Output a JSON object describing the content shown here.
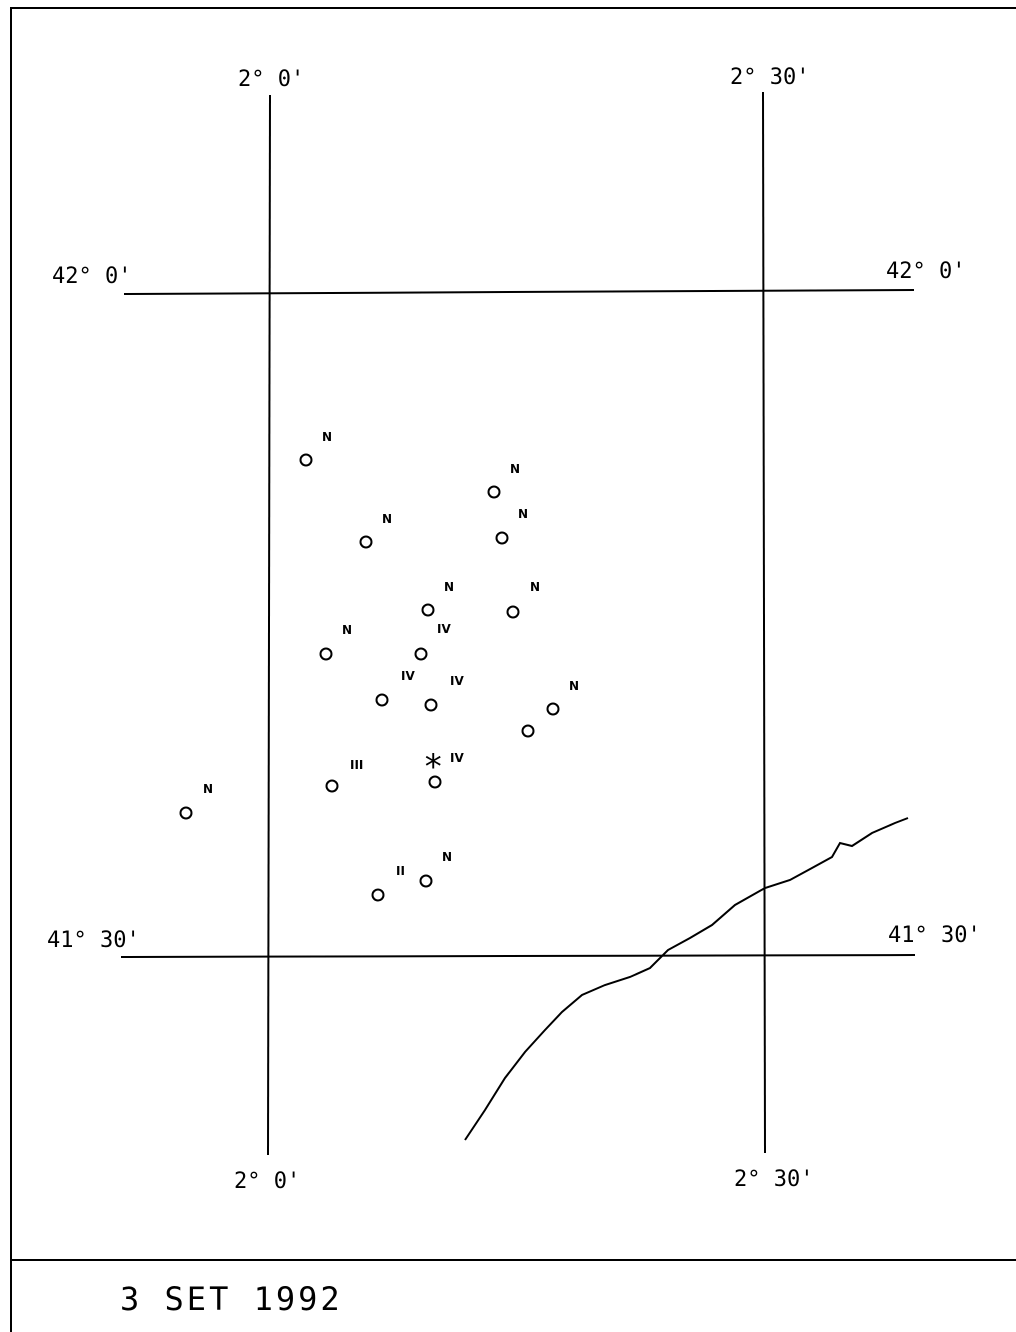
{
  "map": {
    "labels": {
      "lon_2_0": "2° 0'",
      "lon_2_30": "2° 30'",
      "lat_42_0": "42° 0'",
      "lat_41_30": "41° 30'"
    },
    "epicenter_marker": "*",
    "epicenter_intensity": "IV",
    "observations": [
      {
        "id": "obs-1",
        "intensity": "N"
      },
      {
        "id": "obs-2",
        "intensity": "N"
      },
      {
        "id": "obs-3",
        "intensity": "N"
      },
      {
        "id": "obs-4",
        "intensity": "N"
      },
      {
        "id": "obs-5",
        "intensity": "N"
      },
      {
        "id": "obs-6",
        "intensity": "N"
      },
      {
        "id": "obs-7",
        "intensity": "N"
      },
      {
        "id": "obs-8",
        "intensity": "IV"
      },
      {
        "id": "obs-9",
        "intensity": "IV"
      },
      {
        "id": "obs-10",
        "intensity": "IV"
      },
      {
        "id": "obs-11",
        "intensity": "N"
      },
      {
        "id": "obs-12",
        "intensity": "III"
      },
      {
        "id": "obs-13",
        "intensity": "N"
      },
      {
        "id": "obs-14",
        "intensity": "II"
      },
      {
        "id": "obs-15",
        "intensity": "N"
      }
    ]
  },
  "footer": {
    "date": "3 SET 1992"
  },
  "colors": {
    "ink": "#000000",
    "paper": "#ffffff"
  }
}
